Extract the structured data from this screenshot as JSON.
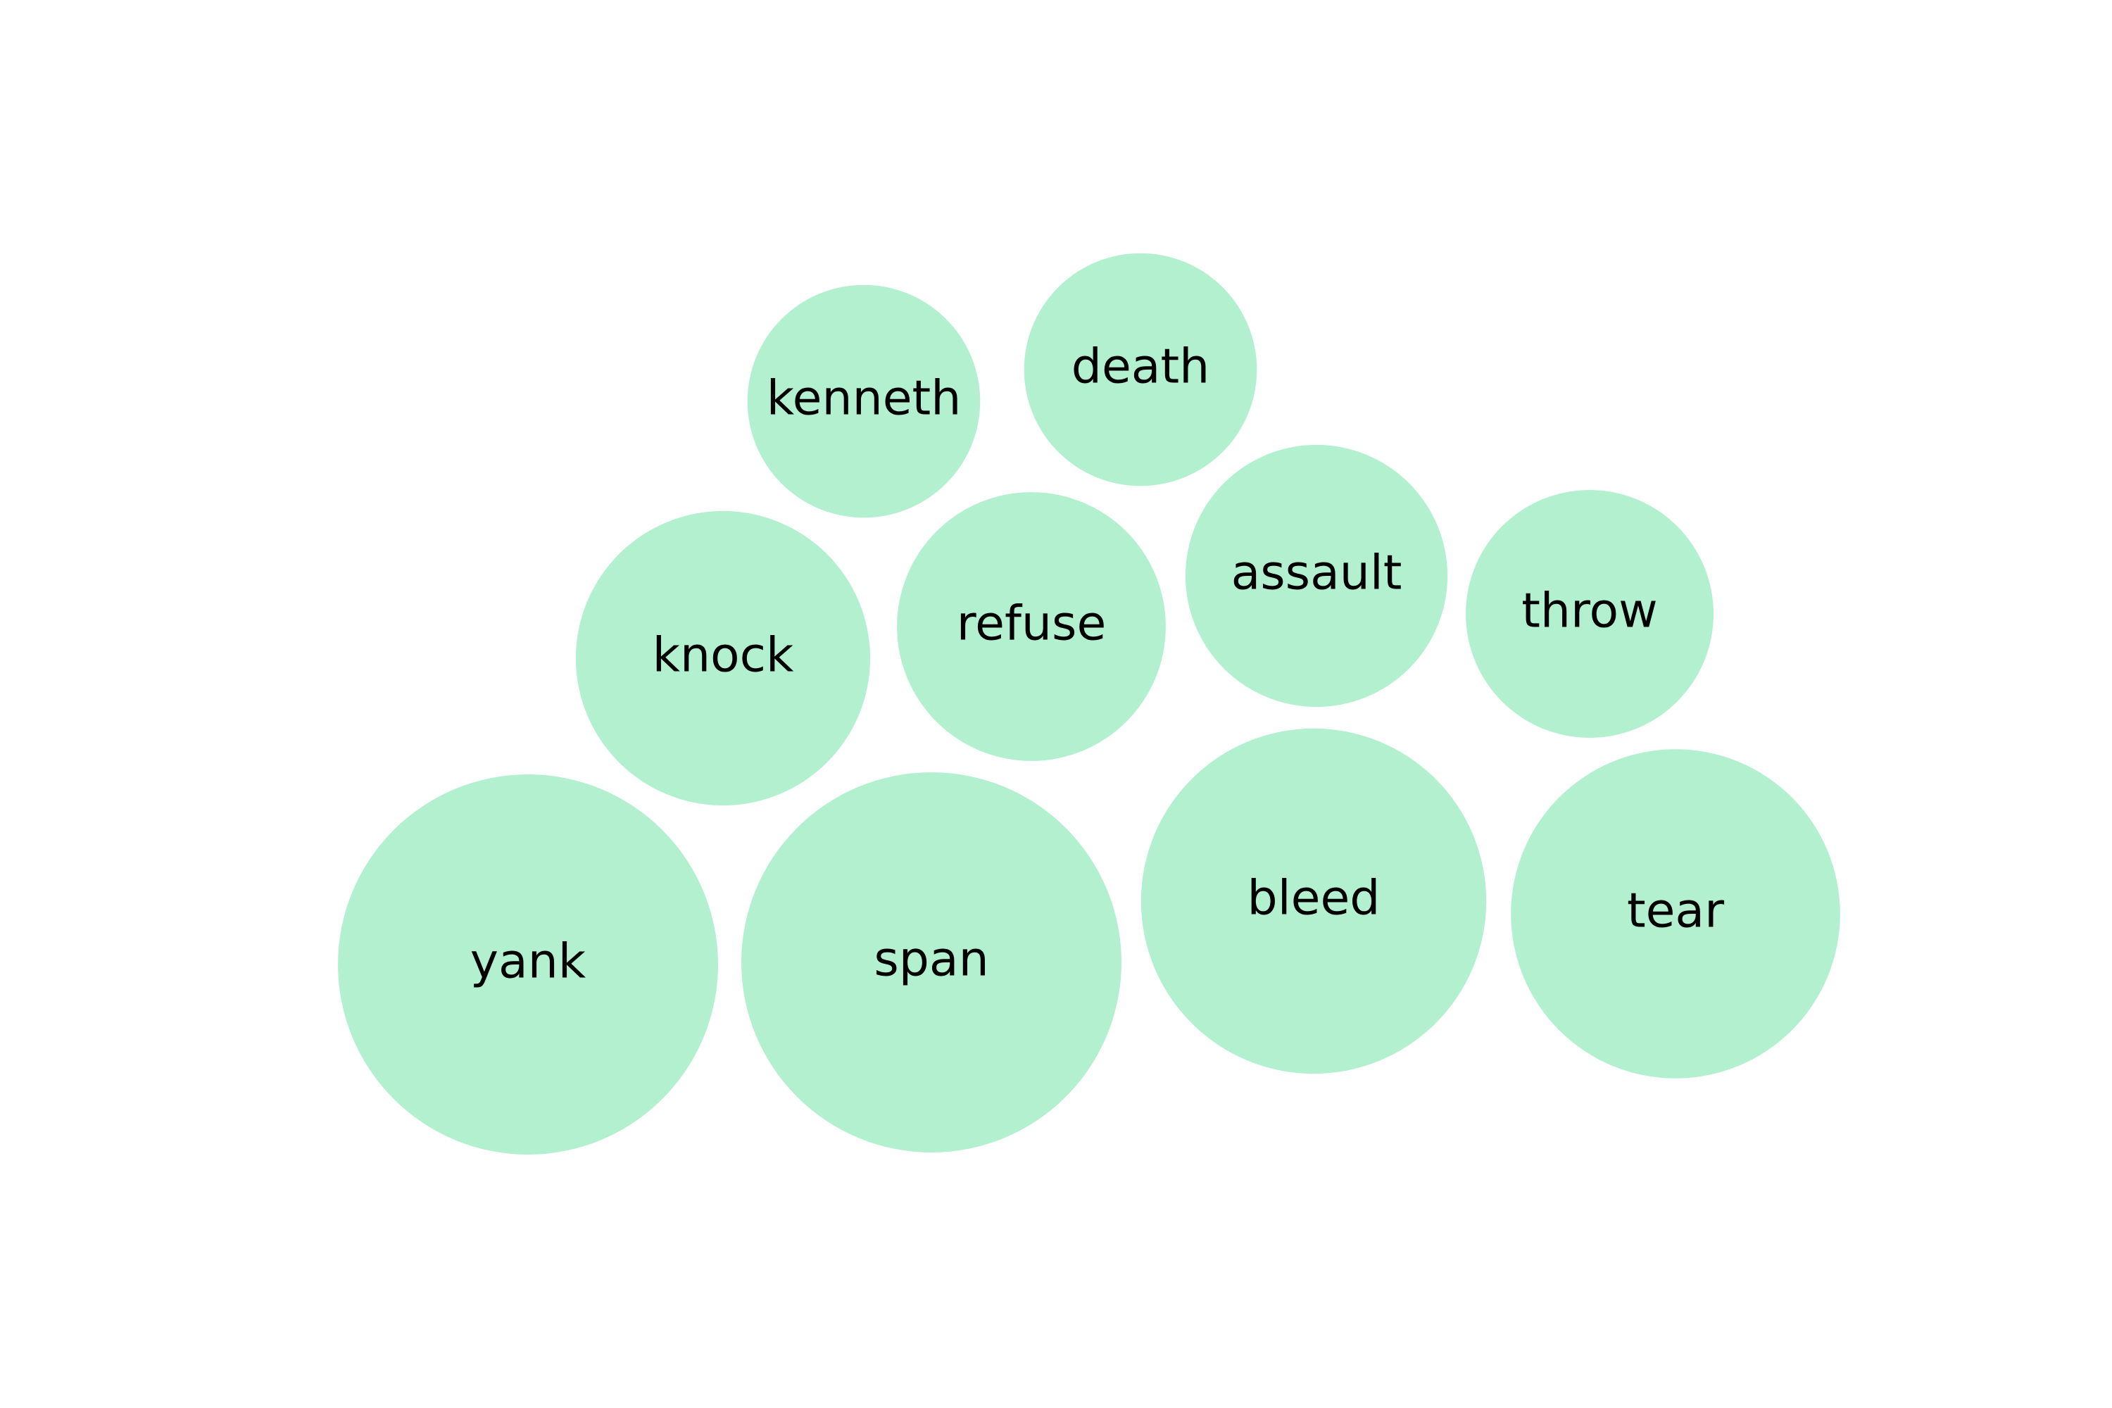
{
  "chart_data": {
    "type": "bubble",
    "title": "",
    "colors": {
      "bubble_fill": "#b2f0d0",
      "label": "#000000",
      "background": "#ffffff"
    },
    "bubbles": [
      {
        "label": "kenneth",
        "value": 7.5
      },
      {
        "label": "death",
        "value": 7.5
      },
      {
        "label": "knock",
        "value": 12
      },
      {
        "label": "refuse",
        "value": 10
      },
      {
        "label": "assault",
        "value": 9.5
      },
      {
        "label": "throw",
        "value": 8.5
      },
      {
        "label": "yank",
        "value": 20
      },
      {
        "label": "span",
        "value": 20
      },
      {
        "label": "bleed",
        "value": 16.5
      },
      {
        "label": "tear",
        "value": 15
      }
    ]
  }
}
